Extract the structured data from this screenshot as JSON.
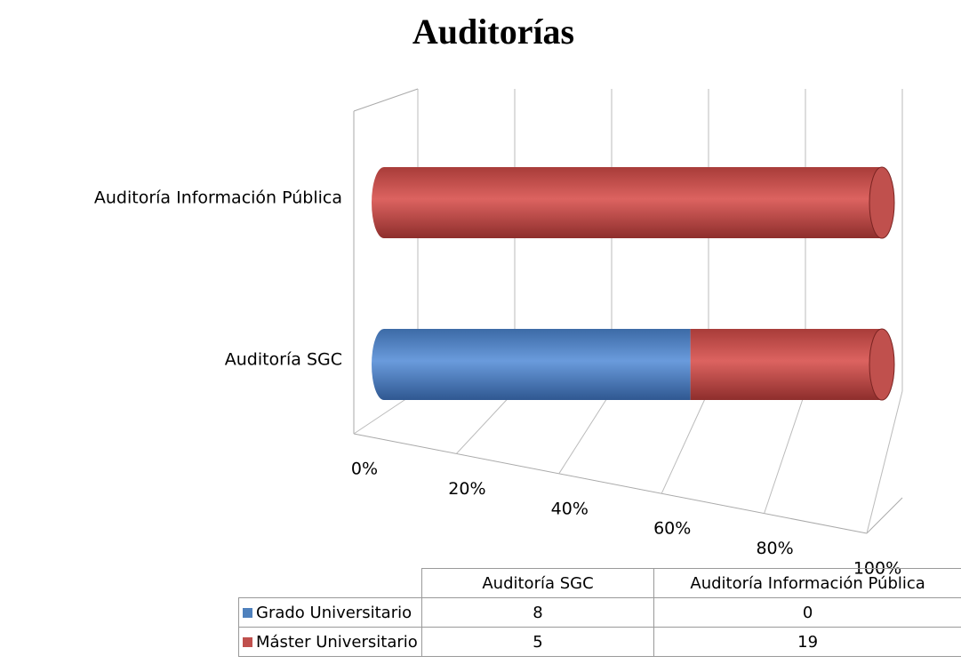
{
  "chart_data": {
    "type": "bar",
    "stacked": "percent",
    "orientation": "horizontal",
    "title": "Auditorías",
    "categories": [
      "Auditoría SGC",
      "Auditoría Información Pública"
    ],
    "series": [
      {
        "name": "Grado Universitario",
        "color": "#4f81bd",
        "values": [
          8,
          0
        ]
      },
      {
        "name": "Máster Universitario",
        "color": "#c0504d",
        "values": [
          5,
          19
        ]
      }
    ],
    "xlim": [
      0,
      100
    ],
    "xticks": [
      {
        "value": 0,
        "label": "0%"
      },
      {
        "value": 20,
        "label": "20%"
      },
      {
        "value": 40,
        "label": "40%"
      },
      {
        "value": 60,
        "label": "60%"
      },
      {
        "value": 80,
        "label": "80%"
      },
      {
        "value": 100,
        "label": "100%"
      }
    ],
    "grid": true,
    "legend": "data-table"
  }
}
